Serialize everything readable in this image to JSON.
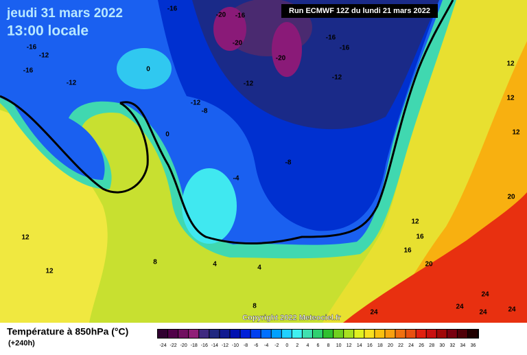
{
  "header": {
    "date": "jeudi 31 mars 2022",
    "time": "13:00 locale",
    "run": "Run ECMWF 12Z du lundi 21 mars 2022",
    "copyright": "Copyright 2022 Meteociel.fr"
  },
  "legend": {
    "title": "Température à 850hPa (°C)",
    "subtitle": "(+240h)",
    "ticks": [
      -24,
      -22,
      -20,
      -18,
      -16,
      -14,
      -12,
      -10,
      -8,
      -6,
      -4,
      -2,
      0,
      2,
      4,
      6,
      8,
      10,
      12,
      14,
      16,
      18,
      20,
      22,
      24,
      26,
      28,
      30,
      32,
      34,
      36
    ],
    "colors": [
      "#300030",
      "#500048",
      "#701060",
      "#902078",
      "#402a80",
      "#202880",
      "#101a90",
      "#0010b0",
      "#0020d8",
      "#0040f0",
      "#0070ff",
      "#00a0ff",
      "#20d0ff",
      "#40f0f0",
      "#40e0b0",
      "#30d070",
      "#30c030",
      "#70d020",
      "#a8e020",
      "#e0f020",
      "#f8e020",
      "#f8c010",
      "#f8a010",
      "#f07010",
      "#e85010",
      "#e02010",
      "#c81010",
      "#a00808",
      "#780010",
      "#500008",
      "#200000"
    ]
  },
  "map_labels": [
    "-16",
    "-20",
    "-16",
    "-20",
    "-16",
    "-16",
    "-20",
    "-12",
    "-16",
    "-12",
    "-16",
    "-12",
    "-12",
    "-12",
    "-8",
    "0",
    "0",
    "-8",
    "-4",
    "12",
    "12",
    "12",
    "20",
    "12",
    "16",
    "16",
    "20",
    "12",
    "12",
    "8",
    "4",
    "4",
    "8",
    "24",
    "24",
    "24",
    "24",
    "24"
  ]
}
